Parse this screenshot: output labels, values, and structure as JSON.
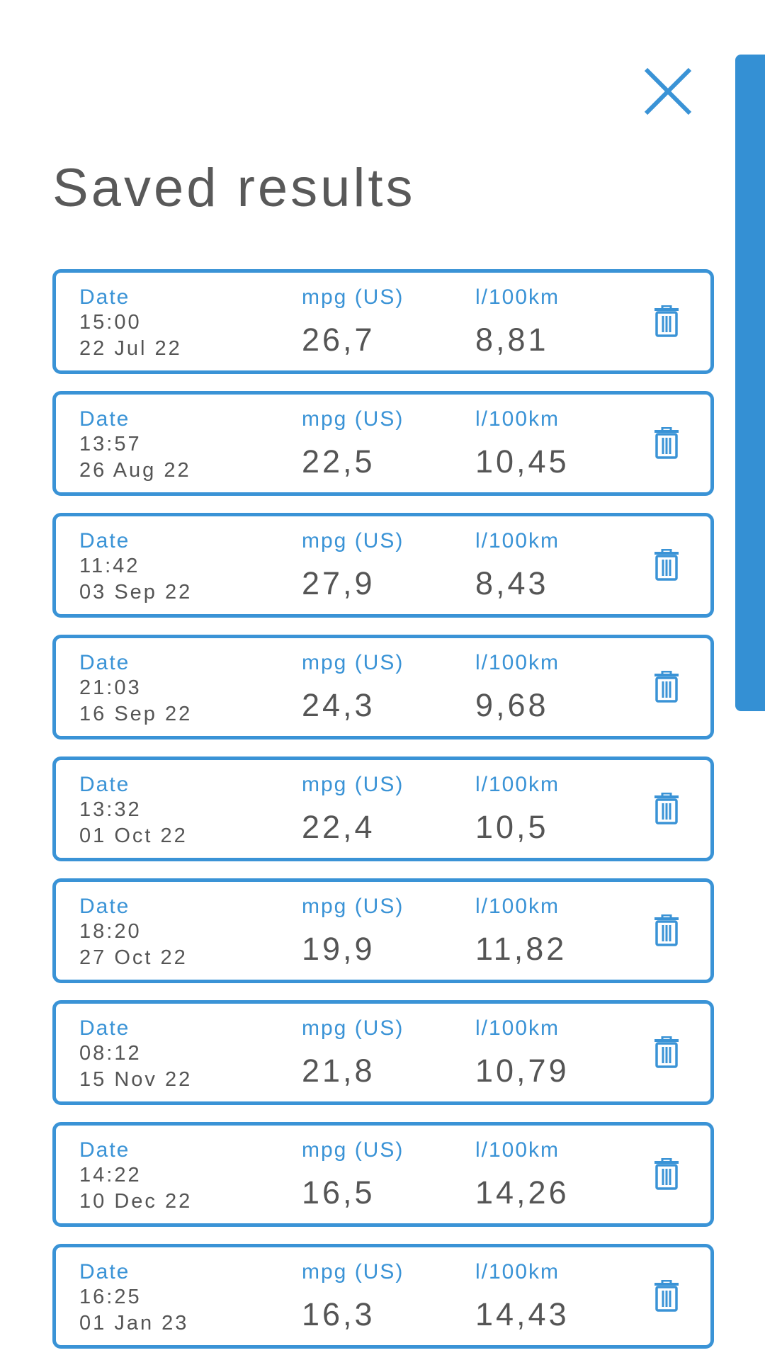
{
  "page": {
    "title": "Saved results",
    "close_icon": "close-icon",
    "accent_color": "#3a93d6",
    "text_color": "#555555"
  },
  "results": [
    {
      "date_label": "Date",
      "time": "15:00",
      "date": "22 Jul 22",
      "mpg_label": "mpg (US)",
      "mpg": "26,7",
      "l100_label": "l/100km",
      "l100": "8,81",
      "delete_icon": "trash-icon"
    },
    {
      "date_label": "Date",
      "time": "13:57",
      "date": "26 Aug 22",
      "mpg_label": "mpg (US)",
      "mpg": "22,5",
      "l100_label": "l/100km",
      "l100": "10,45",
      "delete_icon": "trash-icon"
    },
    {
      "date_label": "Date",
      "time": "11:42",
      "date": "03 Sep 22",
      "mpg_label": "mpg (US)",
      "mpg": "27,9",
      "l100_label": "l/100km",
      "l100": "8,43",
      "delete_icon": "trash-icon"
    },
    {
      "date_label": "Date",
      "time": "21:03",
      "date": "16 Sep 22",
      "mpg_label": "mpg (US)",
      "mpg": "24,3",
      "l100_label": "l/100km",
      "l100": "9,68",
      "delete_icon": "trash-icon"
    },
    {
      "date_label": "Date",
      "time": "13:32",
      "date": "01 Oct 22",
      "mpg_label": "mpg (US)",
      "mpg": "22,4",
      "l100_label": "l/100km",
      "l100": "10,5",
      "delete_icon": "trash-icon"
    },
    {
      "date_label": "Date",
      "time": "18:20",
      "date": "27 Oct 22",
      "mpg_label": "mpg (US)",
      "mpg": "19,9",
      "l100_label": "l/100km",
      "l100": "11,82",
      "delete_icon": "trash-icon"
    },
    {
      "date_label": "Date",
      "time": "08:12",
      "date": "15 Nov 22",
      "mpg_label": "mpg (US)",
      "mpg": "21,8",
      "l100_label": "l/100km",
      "l100": "10,79",
      "delete_icon": "trash-icon"
    },
    {
      "date_label": "Date",
      "time": "14:22",
      "date": "10 Dec 22",
      "mpg_label": "mpg (US)",
      "mpg": "16,5",
      "l100_label": "l/100km",
      "l100": "14,26",
      "delete_icon": "trash-icon"
    },
    {
      "date_label": "Date",
      "time": "16:25",
      "date": "01 Jan 23",
      "mpg_label": "mpg (US)",
      "mpg": "16,3",
      "l100_label": "l/100km",
      "l100": "14,43",
      "delete_icon": "trash-icon"
    }
  ]
}
